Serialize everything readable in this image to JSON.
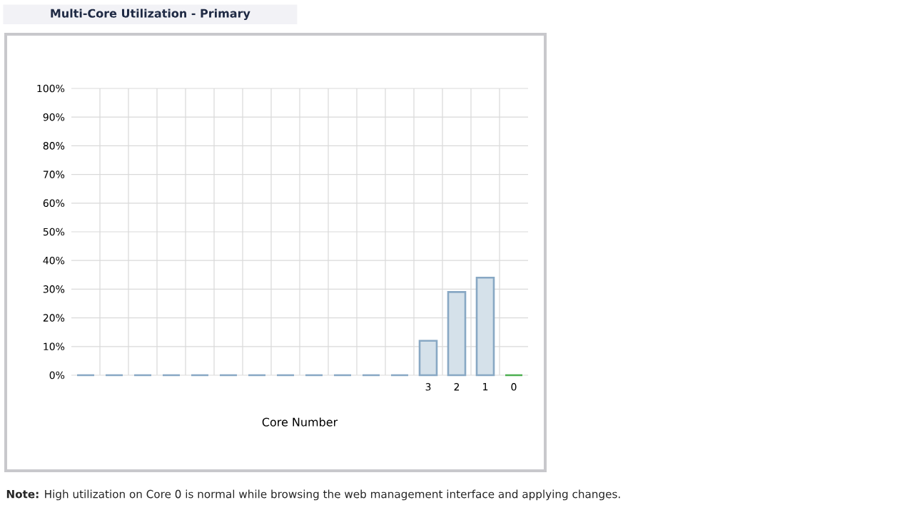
{
  "chart_data": {
    "type": "bar",
    "title": "Multi-Core Utilization - Primary",
    "xlabel": "Core Number",
    "categories": [
      null,
      null,
      null,
      null,
      null,
      null,
      null,
      null,
      null,
      null,
      null,
      null,
      "3",
      "2",
      "1",
      "0"
    ],
    "values": [
      0,
      0,
      0,
      0,
      0,
      0,
      0,
      0,
      0,
      0,
      0,
      0,
      12,
      29,
      34,
      0
    ],
    "colors": [
      "#88a8c4",
      "#88a8c4",
      "#88a8c4",
      "#88a8c4",
      "#88a8c4",
      "#88a8c4",
      "#88a8c4",
      "#88a8c4",
      "#88a8c4",
      "#88a8c4",
      "#88a8c4",
      "#88a8c4",
      "#88a8c4",
      "#88a8c4",
      "#88a8c4",
      "#4caf50"
    ],
    "ylim": [
      0,
      100
    ],
    "yticks": [
      {
        "value": 0,
        "label": "0%"
      },
      {
        "value": 10,
        "label": "10%"
      },
      {
        "value": 20,
        "label": "20%"
      },
      {
        "value": 30,
        "label": "30%"
      },
      {
        "value": 40,
        "label": "40%"
      },
      {
        "value": 50,
        "label": "50%"
      },
      {
        "value": 60,
        "label": "60%"
      },
      {
        "value": 70,
        "label": "70%"
      },
      {
        "value": 80,
        "label": "80%"
      },
      {
        "value": 90,
        "label": "90%"
      },
      {
        "value": 100,
        "label": "100%"
      }
    ],
    "grid": true,
    "annotations": [
      "**Note:** High utilization on Core 0 is normal while browsing the web management interface and applying changes."
    ]
  }
}
